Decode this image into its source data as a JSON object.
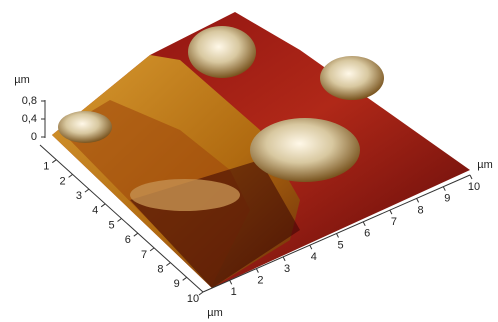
{
  "chart_data": {
    "type": "surface3d",
    "xlim": [
      0,
      10
    ],
    "xticks": [
      1,
      2,
      3,
      4,
      5,
      6,
      7,
      8,
      9,
      10
    ],
    "xlabel": "µm",
    "ylim": [
      0,
      10
    ],
    "yticks": [
      1,
      2,
      3,
      4,
      5,
      6,
      7,
      8,
      9,
      10
    ],
    "ylabel": "µm",
    "zlim": [
      0,
      0.8
    ],
    "zticks": [
      0,
      {
        "value": 0.4,
        "label": "0,4"
      },
      {
        "value": 0.8,
        "label": "0,8"
      }
    ],
    "zlabel": "µm"
  }
}
